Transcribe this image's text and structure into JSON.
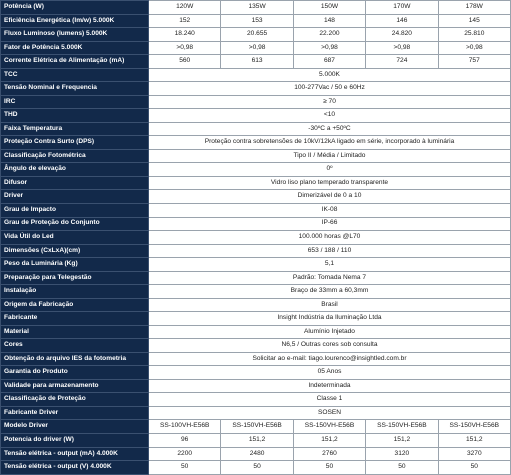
{
  "table": {
    "rows": [
      {
        "label": "Potência (W)",
        "cells": [
          "120W",
          "135W",
          "150W",
          "170W",
          "178W"
        ]
      },
      {
        "label": "Eficiência Energética (lm/w) 5.000K",
        "cells": [
          "152",
          "153",
          "148",
          "146",
          "145"
        ]
      },
      {
        "label": "Fluxo Luminoso (lumens) 5.000K",
        "cells": [
          "18.240",
          "20.655",
          "22.200",
          "24.820",
          "25.810"
        ]
      },
      {
        "label": "Fator de Potência 5.000K",
        "cells": [
          ">0,98",
          ">0,98",
          ">0,98",
          ">0,98",
          ">0,98"
        ]
      },
      {
        "label": "Corrente Elétrica de Alimentação (mA)",
        "cells": [
          "560",
          "613",
          "687",
          "724",
          "757"
        ]
      },
      {
        "label": "TCC",
        "cells": [
          "5.000K"
        ]
      },
      {
        "label": "Tensão Nominal e Frequencia",
        "cells": [
          "100-277Vac / 50 e 60Hz"
        ]
      },
      {
        "label": "IRC",
        "cells": [
          "≥ 70"
        ]
      },
      {
        "label": "THD",
        "cells": [
          "<10"
        ]
      },
      {
        "label": "Faixa Temperatura",
        "cells": [
          "-30ºC a +50ºC"
        ]
      },
      {
        "label": "Proteção Contra Surto (DPS)",
        "cells": [
          "Proteção contra sobretensões de 10kV/12kA ligado em série, incorporado à luminária"
        ]
      },
      {
        "label": "Classificação Fotométrica",
        "cells": [
          "Tipo II / Média / Limitado"
        ]
      },
      {
        "label": "Ângulo de elevação",
        "cells": [
          "0º"
        ]
      },
      {
        "label": "Difusor",
        "cells": [
          "Vidro liso plano temperado transparente"
        ]
      },
      {
        "label": "Driver",
        "cells": [
          "Dimerizável de 0 a 10"
        ]
      },
      {
        "label": "Grau de Impacto",
        "cells": [
          "IK-08"
        ]
      },
      {
        "label": "Grau de Proteção do Conjunto",
        "cells": [
          "IP-66"
        ]
      },
      {
        "label": "Vida Útil do Led",
        "cells": [
          "100.000 horas @L70"
        ]
      },
      {
        "label": "Dimensões (CxLxA)(cm)",
        "cells": [
          "653 / 188 / 110"
        ]
      },
      {
        "label": "Peso da Luminária (Kg)",
        "cells": [
          "5,1"
        ]
      },
      {
        "label": "Preparação para Telegestão",
        "cells": [
          "Padrão: Tomada Nema 7"
        ]
      },
      {
        "label": "Instalação",
        "cells": [
          "Braço de 33mm a 60,3mm"
        ]
      },
      {
        "label": "Origem da Fabricação",
        "cells": [
          "Brasil"
        ]
      },
      {
        "label": "Fabricante",
        "cells": [
          "Insight Indústria da Iluminação Ltda"
        ]
      },
      {
        "label": "Material",
        "cells": [
          "Alumínio Injetado"
        ]
      },
      {
        "label": "Cores",
        "cells": [
          "N6,5 / Outras cores sob consulta"
        ]
      },
      {
        "label": "Obtenção do arquivo IES da fotometria",
        "cells": [
          "Solicitar ao e-mail: tiago.lourenco@insightled.com.br"
        ]
      },
      {
        "label": "Garantia do Produto",
        "cells": [
          "05 Anos"
        ]
      },
      {
        "label": "Validade para armazenamento",
        "cells": [
          "Indeterminada"
        ]
      },
      {
        "label": "Classificação de Proteção",
        "cells": [
          "Classe 1"
        ]
      },
      {
        "label": "Fabricante Driver",
        "cells": [
          "SOSEN"
        ]
      },
      {
        "label": "Modelo Driver",
        "cells": [
          "SS-100VH-E56B",
          "SS-150VH-E56B",
          "SS-150VH-E56B",
          "SS-150VH-E56B",
          "SS-150VH-E56B"
        ]
      },
      {
        "label": "Potencia do driver (W)",
        "cells": [
          "96",
          "151,2",
          "151,2",
          "151,2",
          "151,2"
        ]
      },
      {
        "label": "Tensão elétrica - output (mA) 4.000K",
        "cells": [
          "2200",
          "2480",
          "2760",
          "3120",
          "3270"
        ]
      },
      {
        "label": "Tensão elétrica - output (V) 4.000K",
        "cells": [
          "50",
          "50",
          "50",
          "50",
          "50"
        ]
      }
    ]
  }
}
